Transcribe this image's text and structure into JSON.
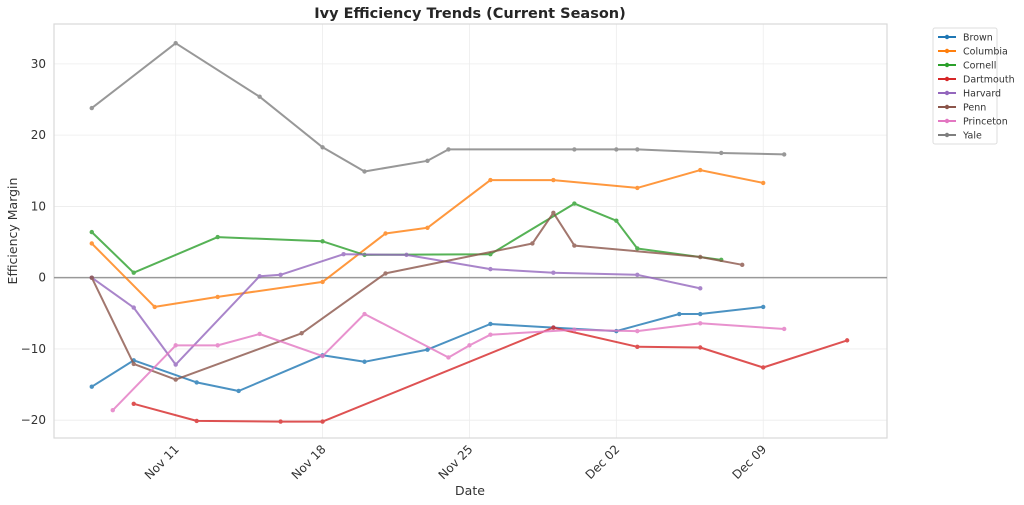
{
  "chart_data": {
    "type": "line",
    "title": "Ivy Efficiency Trends (Current Season)",
    "xlabel": "Date",
    "ylabel": "Efficiency Margin",
    "x_start": "Nov 07",
    "xlim_days_from_nov11": [
      -5.8,
      33.9
    ],
    "ylim": [
      -22.5,
      35.6
    ],
    "x_ticks": [
      {
        "label": "Nov 11",
        "day": 0
      },
      {
        "label": "Nov 18",
        "day": 7
      },
      {
        "label": "Nov 25",
        "day": 14
      },
      {
        "label": "Dec 02",
        "day": 21
      },
      {
        "label": "Dec 09",
        "day": 28
      }
    ],
    "y_ticks": [
      -20,
      -10,
      0,
      10,
      20,
      30
    ],
    "y_tick_labels": [
      "−20",
      "−10",
      "0",
      "10",
      "20",
      "30"
    ],
    "zero_line": true,
    "grid": true,
    "legend_position": "outside-top-right",
    "series": [
      {
        "name": "Brown",
        "color": "#1f77b4",
        "x": [
          "Nov 07",
          "Nov 09",
          "Nov 12",
          "Nov 14",
          "Nov 18",
          "Nov 20",
          "Nov 23",
          "Nov 26",
          "Nov 29",
          "Dec 02",
          "Dec 05",
          "Dec 06",
          "Dec 09"
        ],
        "days": [
          -4,
          -2,
          1,
          3,
          7,
          9,
          12,
          15,
          18,
          21,
          24,
          25,
          28
        ],
        "values": [
          -15.3,
          -11.6,
          -14.7,
          -15.9,
          -10.9,
          -11.8,
          -10.1,
          -6.5,
          -7.0,
          -7.5,
          -5.1,
          -5.1,
          -4.1
        ]
      },
      {
        "name": "Columbia",
        "color": "#ff7f0e",
        "x": [
          "Nov 07",
          "Nov 10",
          "Nov 13",
          "Nov 18",
          "Nov 21",
          "Nov 23",
          "Nov 26",
          "Nov 29",
          "Dec 03",
          "Dec 06",
          "Dec 09"
        ],
        "days": [
          -4,
          -1,
          2,
          7,
          10,
          12,
          15,
          18,
          22,
          25,
          28
        ],
        "values": [
          4.8,
          -4.1,
          -2.7,
          -0.6,
          6.2,
          7.0,
          13.7,
          13.7,
          12.6,
          15.1,
          13.3
        ]
      },
      {
        "name": "Cornell",
        "color": "#2ca02c",
        "x": [
          "Nov 07",
          "Nov 09",
          "Nov 13",
          "Nov 18",
          "Nov 20",
          "Nov 26",
          "Nov 30",
          "Dec 02",
          "Dec 03",
          "Dec 07"
        ],
        "days": [
          -4,
          -2,
          2,
          7,
          9,
          15,
          19,
          21,
          22,
          26
        ],
        "values": [
          6.4,
          0.7,
          5.7,
          5.1,
          3.2,
          3.3,
          10.4,
          8.0,
          4.1,
          2.5
        ]
      },
      {
        "name": "Dartmouth",
        "color": "#d62728",
        "x": [
          "Nov 09",
          "Nov 12",
          "Nov 16",
          "Nov 18",
          "Nov 29",
          "Dec 03",
          "Dec 06",
          "Dec 09",
          "Dec 13"
        ],
        "days": [
          -2,
          1,
          5,
          7,
          18,
          22,
          25,
          28,
          32
        ],
        "values": [
          -17.7,
          -20.1,
          -20.2,
          -20.2,
          -7.0,
          -9.7,
          -9.8,
          -12.6,
          -8.8
        ]
      },
      {
        "name": "Harvard",
        "color": "#9467bd",
        "x": [
          "Nov 07",
          "Nov 09",
          "Nov 11",
          "Nov 15",
          "Nov 16",
          "Nov 19",
          "Nov 22",
          "Nov 26",
          "Nov 29",
          "Dec 03",
          "Dec 06"
        ],
        "days": [
          -4,
          -2,
          0,
          4,
          5,
          8,
          11,
          15,
          18,
          22,
          25
        ],
        "values": [
          0.0,
          -4.2,
          -12.2,
          0.2,
          0.4,
          3.3,
          3.2,
          1.2,
          0.7,
          0.4,
          -1.5
        ]
      },
      {
        "name": "Penn",
        "color": "#8c564b",
        "x": [
          "Nov 07",
          "Nov 09",
          "Nov 11",
          "Nov 17",
          "Nov 21",
          "Nov 28",
          "Nov 29",
          "Nov 30",
          "Dec 06",
          "Dec 08"
        ],
        "days": [
          -4,
          -2,
          0,
          6,
          10,
          17,
          18,
          19,
          25,
          27
        ],
        "values": [
          0.0,
          -12.1,
          -14.3,
          -7.8,
          0.6,
          4.8,
          9.1,
          4.5,
          2.9,
          1.8
        ]
      },
      {
        "name": "Princeton",
        "color": "#e377c2",
        "x": [
          "Nov 08",
          "Nov 11",
          "Nov 13",
          "Nov 15",
          "Nov 18",
          "Nov 20",
          "Nov 24",
          "Nov 25",
          "Nov 26",
          "Nov 30",
          "Dec 03",
          "Dec 06",
          "Dec 10"
        ],
        "days": [
          -3,
          0,
          2,
          4,
          7,
          9,
          13,
          14,
          15,
          19,
          22,
          25,
          29
        ],
        "values": [
          -18.6,
          -9.5,
          -9.5,
          -7.9,
          -11.0,
          -5.1,
          -11.2,
          -9.5,
          -8.0,
          -7.3,
          -7.5,
          -6.4,
          -7.2
        ]
      },
      {
        "name": "Yale",
        "color": "#7f7f7f",
        "x": [
          "Nov 07",
          "Nov 11",
          "Nov 15",
          "Nov 18",
          "Nov 20",
          "Nov 23",
          "Nov 24",
          "Nov 30",
          "Dec 02",
          "Dec 03",
          "Dec 07",
          "Dec 10"
        ],
        "days": [
          -4,
          0,
          4,
          7,
          9,
          12,
          13,
          19,
          21,
          22,
          26,
          29
        ],
        "values": [
          23.8,
          32.9,
          25.4,
          18.3,
          14.9,
          16.4,
          18.0,
          18.0,
          18.0,
          18.0,
          17.5,
          17.3
        ]
      }
    ]
  }
}
